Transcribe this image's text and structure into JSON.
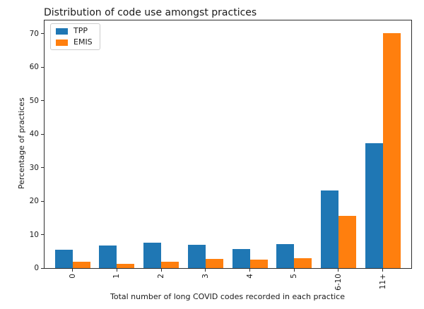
{
  "chart_data": {
    "type": "bar",
    "title": "Distribution of code use amongst practices",
    "categories": [
      "0",
      "1",
      "2",
      "3",
      "4",
      "5",
      "6-10",
      "11+"
    ],
    "series": [
      {
        "name": "TPP",
        "color": "#1f77b4",
        "values": [
          5.4,
          6.7,
          7.5,
          6.9,
          5.8,
          7.1,
          23.1,
          37.4
        ]
      },
      {
        "name": "EMIS",
        "color": "#ff7f0e",
        "values": [
          2.0,
          1.3,
          1.9,
          2.7,
          2.6,
          3.0,
          15.7,
          70.3
        ]
      }
    ],
    "xlabel": "Total number of long COVID codes recorded in each practice",
    "ylabel": "Percentage of practices",
    "ylim": [
      0,
      74
    ],
    "yticks": [
      0,
      10,
      20,
      30,
      40,
      50,
      60,
      70
    ],
    "legend": {
      "position": "upper left",
      "entries": [
        "TPP",
        "EMIS"
      ]
    },
    "grid": false
  }
}
